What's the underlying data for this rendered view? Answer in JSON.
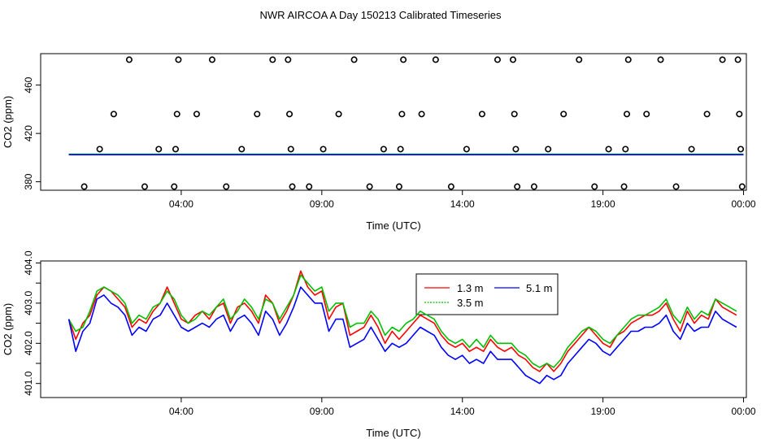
{
  "figure": {
    "title": "NWR AIRCOA A  Day 150213  Calibrated Timeseries"
  },
  "chart_data": [
    {
      "type": "scatter",
      "title": "NWR AIRCOA A  Day 150213  Calibrated Timeseries",
      "xlabel": "Time (UTC)",
      "ylabel": "CO2 (ppm)",
      "x_unit": "hours (UTC)",
      "xlim": [
        -1.0,
        24.1
      ],
      "ylim": [
        373,
        486
      ],
      "x_ticks": [
        4,
        9,
        14,
        19,
        24
      ],
      "x_tick_labels": [
        "04:00",
        "09:00",
        "14:00",
        "19:00",
        "00:00"
      ],
      "y_ticks": [
        380,
        420,
        460
      ],
      "y_tick_labels": [
        "380",
        "420",
        "460"
      ],
      "grid": false,
      "legend": "none",
      "points": [
        {
          "x": 0.55,
          "y": 376
        },
        {
          "x": 1.1,
          "y": 407
        },
        {
          "x": 1.6,
          "y": 436
        },
        {
          "x": 2.15,
          "y": 481
        },
        {
          "x": 2.7,
          "y": 376
        },
        {
          "x": 3.2,
          "y": 407
        },
        {
          "x": 3.75,
          "y": 376
        },
        {
          "x": 3.8,
          "y": 407
        },
        {
          "x": 3.85,
          "y": 436
        },
        {
          "x": 3.9,
          "y": 481
        },
        {
          "x": 4.55,
          "y": 436
        },
        {
          "x": 5.1,
          "y": 481
        },
        {
          "x": 5.6,
          "y": 376
        },
        {
          "x": 6.15,
          "y": 407
        },
        {
          "x": 6.7,
          "y": 436
        },
        {
          "x": 7.25,
          "y": 481
        },
        {
          "x": 7.8,
          "y": 481
        },
        {
          "x": 7.85,
          "y": 436
        },
        {
          "x": 7.9,
          "y": 407
        },
        {
          "x": 7.95,
          "y": 376
        },
        {
          "x": 8.55,
          "y": 376
        },
        {
          "x": 9.05,
          "y": 407
        },
        {
          "x": 9.6,
          "y": 436
        },
        {
          "x": 10.15,
          "y": 481
        },
        {
          "x": 10.7,
          "y": 376
        },
        {
          "x": 11.2,
          "y": 407
        },
        {
          "x": 11.75,
          "y": 376
        },
        {
          "x": 11.8,
          "y": 407
        },
        {
          "x": 11.85,
          "y": 436
        },
        {
          "x": 11.9,
          "y": 481
        },
        {
          "x": 12.55,
          "y": 436
        },
        {
          "x": 13.05,
          "y": 481
        },
        {
          "x": 13.6,
          "y": 376
        },
        {
          "x": 14.15,
          "y": 407
        },
        {
          "x": 14.7,
          "y": 436
        },
        {
          "x": 15.25,
          "y": 481
        },
        {
          "x": 15.8,
          "y": 481
        },
        {
          "x": 15.85,
          "y": 436
        },
        {
          "x": 15.9,
          "y": 407
        },
        {
          "x": 15.95,
          "y": 376
        },
        {
          "x": 16.55,
          "y": 376
        },
        {
          "x": 17.05,
          "y": 407
        },
        {
          "x": 17.6,
          "y": 436
        },
        {
          "x": 18.15,
          "y": 481
        },
        {
          "x": 18.7,
          "y": 376
        },
        {
          "x": 19.2,
          "y": 407
        },
        {
          "x": 19.75,
          "y": 376
        },
        {
          "x": 19.8,
          "y": 407
        },
        {
          "x": 19.85,
          "y": 436
        },
        {
          "x": 19.9,
          "y": 481
        },
        {
          "x": 20.55,
          "y": 436
        },
        {
          "x": 21.05,
          "y": 481
        },
        {
          "x": 21.6,
          "y": 376
        },
        {
          "x": 22.15,
          "y": 407
        },
        {
          "x": 22.7,
          "y": 436
        },
        {
          "x": 23.25,
          "y": 481
        },
        {
          "x": 23.8,
          "y": 481
        },
        {
          "x": 23.85,
          "y": 436
        },
        {
          "x": 23.9,
          "y": 407
        },
        {
          "x": 23.95,
          "y": 376
        }
      ],
      "series": [
        {
          "color": "#00c000",
          "x": [
            0.0,
            24.0
          ],
          "values": [
            402.8,
            402.8
          ]
        },
        {
          "color": "#0000ff",
          "x": [
            0.0,
            24.0
          ],
          "values": [
            402.4,
            402.4
          ]
        }
      ]
    },
    {
      "type": "line",
      "xlabel": "Time (UTC)",
      "ylabel": "CO2 (ppm)",
      "x_unit": "hours (UTC)",
      "xlim": [
        -1.0,
        24.1
      ],
      "ylim": [
        400.65,
        404.05
      ],
      "x_ticks": [
        4,
        9,
        14,
        19,
        24
      ],
      "x_tick_labels": [
        "04:00",
        "09:00",
        "14:00",
        "19:00",
        "00:00"
      ],
      "y_ticks": [
        401.0,
        401.5,
        402.0,
        402.5,
        403.0,
        403.5,
        404.0
      ],
      "y_tick_labels": [
        "401.0",
        "",
        "402.0",
        "",
        "403.0",
        "",
        "404.0"
      ],
      "grid": false,
      "legend": "top-center",
      "x": [
        0.0,
        0.25,
        0.5,
        0.75,
        1.0,
        1.25,
        1.5,
        1.75,
        2.0,
        2.25,
        2.5,
        2.75,
        3.0,
        3.25,
        3.5,
        3.75,
        4.0,
        4.25,
        4.5,
        4.75,
        5.0,
        5.25,
        5.5,
        5.75,
        6.0,
        6.25,
        6.5,
        6.75,
        7.0,
        7.25,
        7.5,
        7.75,
        8.0,
        8.25,
        8.5,
        8.75,
        9.0,
        9.25,
        9.5,
        9.75,
        10.0,
        10.25,
        10.5,
        10.75,
        11.0,
        11.25,
        11.5,
        11.75,
        12.0,
        12.25,
        12.5,
        12.75,
        13.0,
        13.25,
        13.5,
        13.75,
        14.0,
        14.25,
        14.5,
        14.75,
        15.0,
        15.25,
        15.5,
        15.75,
        16.0,
        16.25,
        16.5,
        16.75,
        17.0,
        17.25,
        17.5,
        17.75,
        18.0,
        18.25,
        18.5,
        18.75,
        19.0,
        19.25,
        19.5,
        19.75,
        20.0,
        20.25,
        20.5,
        20.75,
        21.0,
        21.25,
        21.5,
        21.75,
        22.0,
        22.25,
        22.5,
        22.75,
        23.0,
        23.25,
        23.5,
        23.75
      ],
      "series": [
        {
          "name": "1.3 m",
          "color": "#ff0000",
          "values": [
            402.6,
            402.1,
            402.5,
            402.7,
            403.2,
            403.4,
            403.3,
            403.1,
            402.9,
            402.4,
            402.6,
            402.5,
            402.8,
            403.0,
            403.4,
            403.0,
            402.6,
            402.5,
            402.7,
            402.8,
            402.6,
            402.9,
            403.0,
            402.5,
            402.9,
            403.0,
            402.8,
            402.5,
            403.2,
            403.0,
            402.5,
            402.8,
            403.2,
            403.8,
            403.4,
            403.2,
            403.3,
            402.6,
            402.9,
            403.0,
            402.2,
            402.3,
            402.4,
            402.7,
            402.4,
            402.0,
            402.3,
            402.1,
            402.3,
            402.5,
            402.7,
            402.6,
            402.5,
            402.2,
            402.0,
            401.9,
            402.0,
            401.8,
            401.9,
            401.8,
            402.1,
            401.9,
            401.8,
            401.9,
            401.7,
            401.6,
            401.4,
            401.3,
            401.5,
            401.3,
            401.5,
            401.8,
            402.0,
            402.2,
            402.4,
            402.2,
            402.0,
            401.9,
            402.2,
            402.3,
            402.5,
            402.6,
            402.7,
            402.7,
            402.8,
            403.0,
            402.6,
            402.3,
            402.8,
            402.5,
            402.7,
            402.6,
            403.1,
            402.9,
            402.8,
            402.7
          ]
        },
        {
          "name": "3.5 m",
          "color": "#00c000",
          "values": [
            402.6,
            402.3,
            402.4,
            402.8,
            403.3,
            403.4,
            403.3,
            403.2,
            403.0,
            402.5,
            402.7,
            402.6,
            402.9,
            403.0,
            403.3,
            403.1,
            402.7,
            402.5,
            402.6,
            402.8,
            402.7,
            402.9,
            403.1,
            402.6,
            402.8,
            403.1,
            402.9,
            402.6,
            403.1,
            403.0,
            402.6,
            402.9,
            403.2,
            403.7,
            403.5,
            403.3,
            403.4,
            402.8,
            403.0,
            403.0,
            402.4,
            402.5,
            402.5,
            402.8,
            402.6,
            402.2,
            402.4,
            402.3,
            402.5,
            402.6,
            402.8,
            402.7,
            402.6,
            402.3,
            402.1,
            402.0,
            402.1,
            401.9,
            402.1,
            401.9,
            402.2,
            402.0,
            402.0,
            402.0,
            401.8,
            401.7,
            401.5,
            401.4,
            401.5,
            401.4,
            401.6,
            401.9,
            402.1,
            402.3,
            402.4,
            402.3,
            402.1,
            402.0,
            402.2,
            402.4,
            402.6,
            402.7,
            402.7,
            402.8,
            402.9,
            403.1,
            402.7,
            402.5,
            402.9,
            402.6,
            402.8,
            402.7,
            403.1,
            403.0,
            402.9,
            402.8
          ]
        },
        {
          "name": "5.1 m",
          "color": "#0000ff",
          "values": [
            402.6,
            401.8,
            402.3,
            402.5,
            403.1,
            403.2,
            403.0,
            402.9,
            402.7,
            402.2,
            402.4,
            402.3,
            402.6,
            402.7,
            403.0,
            402.7,
            402.4,
            402.3,
            402.4,
            402.5,
            402.4,
            402.6,
            402.7,
            402.3,
            402.6,
            402.7,
            402.5,
            402.2,
            402.8,
            402.6,
            402.2,
            402.5,
            402.9,
            403.4,
            403.2,
            403.0,
            403.0,
            402.3,
            402.6,
            402.6,
            401.9,
            402.0,
            402.1,
            402.4,
            402.1,
            401.8,
            402.0,
            401.9,
            402.0,
            402.2,
            402.4,
            402.3,
            402.2,
            401.9,
            401.7,
            401.6,
            401.7,
            401.5,
            401.6,
            401.5,
            401.8,
            401.6,
            401.6,
            401.6,
            401.4,
            401.2,
            401.1,
            401.0,
            401.2,
            401.1,
            401.2,
            401.5,
            401.7,
            401.9,
            402.1,
            402.0,
            401.8,
            401.7,
            401.9,
            402.1,
            402.3,
            402.3,
            402.4,
            402.4,
            402.5,
            402.7,
            402.3,
            402.1,
            402.5,
            402.3,
            402.4,
            402.4,
            402.8,
            402.6,
            402.5,
            402.4
          ]
        }
      ]
    }
  ]
}
